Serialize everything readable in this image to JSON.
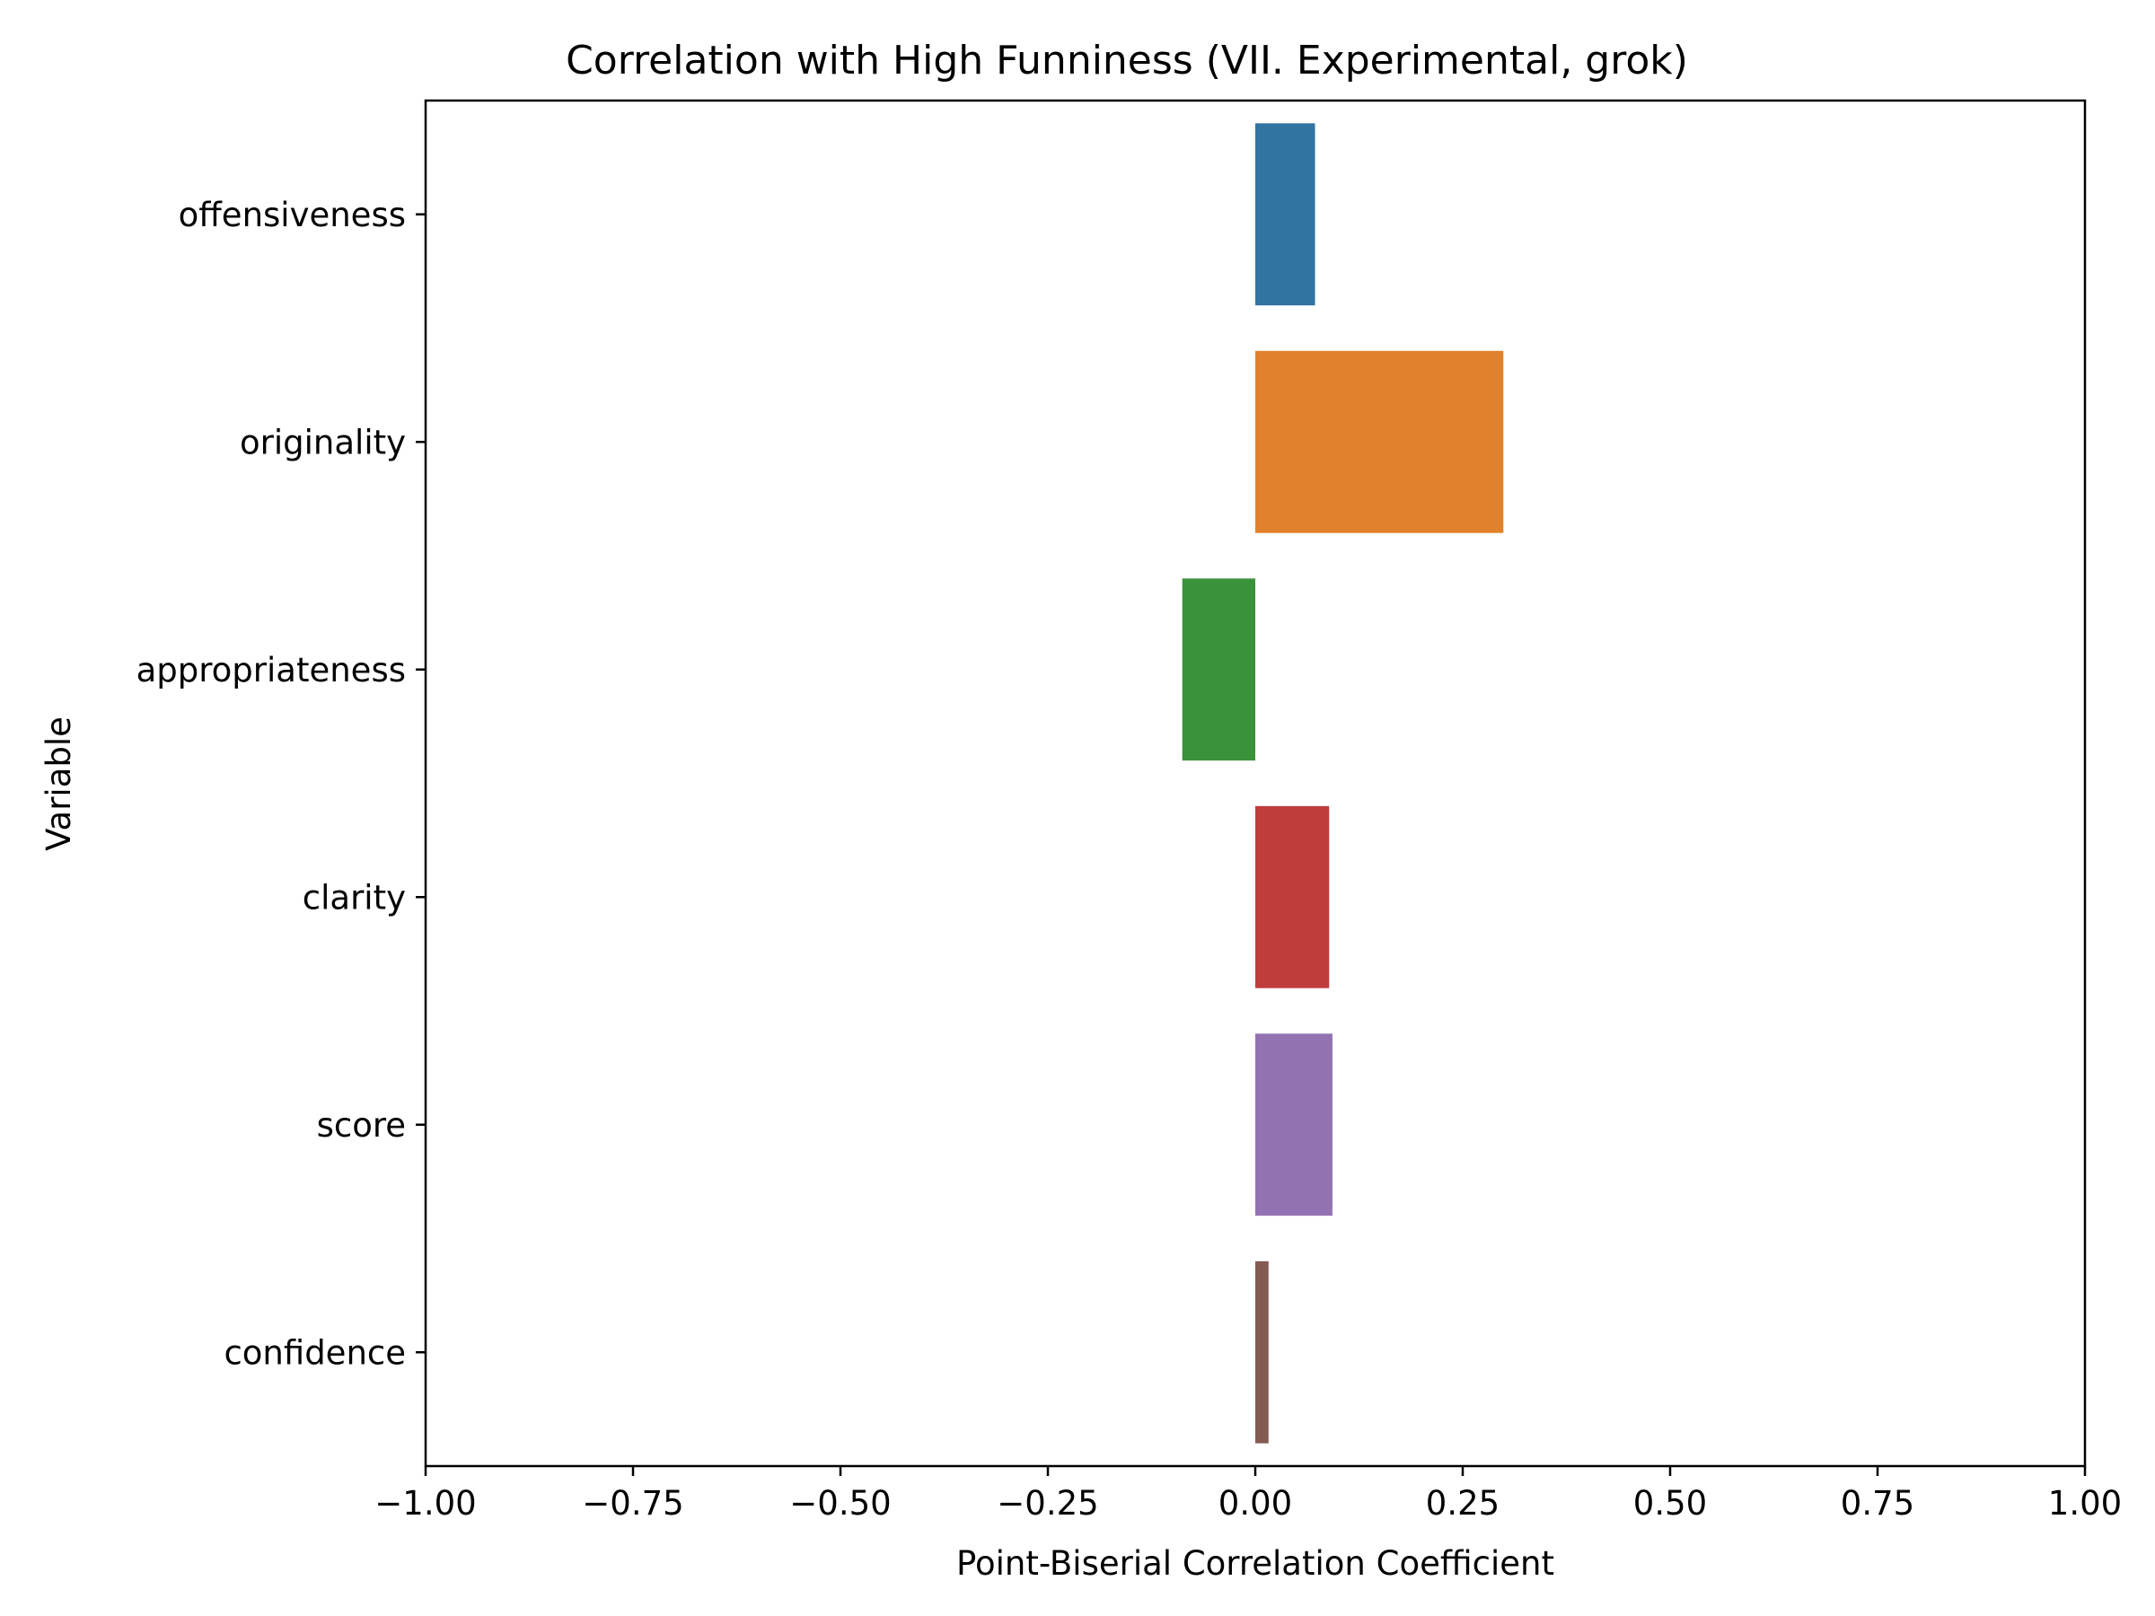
{
  "chart_data": {
    "type": "bar",
    "orientation": "horizontal",
    "title": "Correlation with High Funniness (VII. Experimental, grok)",
    "xlabel": "Point-Biserial Correlation Coefficient",
    "ylabel": "Variable",
    "xlim": [
      -1.0,
      1.0
    ],
    "x_ticks": [
      -1.0,
      -0.75,
      -0.5,
      -0.25,
      0.0,
      0.25,
      0.5,
      0.75,
      1.0
    ],
    "x_tick_labels": [
      "−1.00",
      "−0.75",
      "−0.50",
      "−0.25",
      "0.00",
      "0.25",
      "0.50",
      "0.75",
      "1.00"
    ],
    "categories": [
      "offensiveness",
      "originality",
      "appropriateness",
      "clarity",
      "score",
      "confidence"
    ],
    "values": [
      0.072,
      0.299,
      -0.088,
      0.089,
      0.093,
      0.016
    ],
    "colors": [
      "#3274a1",
      "#e1812c",
      "#3a923a",
      "#c03d3e",
      "#9372b2",
      "#845b53"
    ],
    "grid": false,
    "legend": "none"
  }
}
